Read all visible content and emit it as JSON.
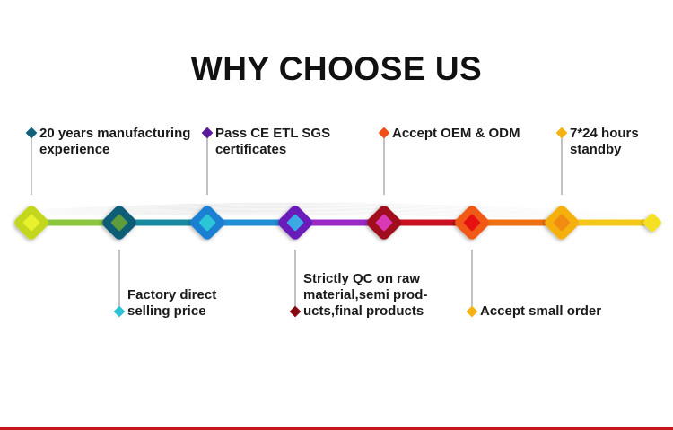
{
  "title": "WHY CHOOSE US",
  "items": [
    {
      "lines": [
        "20 years manufacturing",
        "experience"
      ],
      "position": "top",
      "bullet_color": "#11607a",
      "outer": "#c3d81c",
      "inner": "#e9f12c"
    },
    {
      "lines": [
        "Factory direct",
        "selling price"
      ],
      "position": "bottom",
      "bullet_color": "#2cc3d6",
      "outer": "#0f5d76",
      "inner": "#5f9c3e"
    },
    {
      "lines": [
        "Pass CE  ETL  SGS",
        "certificates"
      ],
      "position": "top",
      "bullet_color": "#5a1a9a",
      "outer": "#1b80d2",
      "inner": "#2ac6d8"
    },
    {
      "lines": [
        "Strictly QC on raw",
        "material,semi prod-",
        "ucts,final products"
      ],
      "position": "bottom",
      "bullet_color": "#8a0a14",
      "outer": "#6b1fba",
      "inner": "#3aa9e6"
    },
    {
      "lines": [
        "Accept OEM & ODM"
      ],
      "position": "top",
      "bullet_color": "#f04e16",
      "outer": "#a00f1e",
      "inner": "#d83ab6"
    },
    {
      "lines": [
        "Accept small order"
      ],
      "position": "bottom",
      "bullet_color": "#f5b212",
      "outer": "#f05a14",
      "inner": "#e61212"
    },
    {
      "lines": [
        "7*24 hours",
        "standby"
      ],
      "position": "top",
      "bullet_color": "#f5b212",
      "outer": "#f5b010",
      "inner": "#f08c12"
    }
  ],
  "end_color": "#f6e020",
  "segment_colors": [
    "#8cc63f",
    "#1a8aa0",
    "#1f8fd8",
    "#9a28c8",
    "#cc1020",
    "#f07010",
    "#f5c818"
  ]
}
